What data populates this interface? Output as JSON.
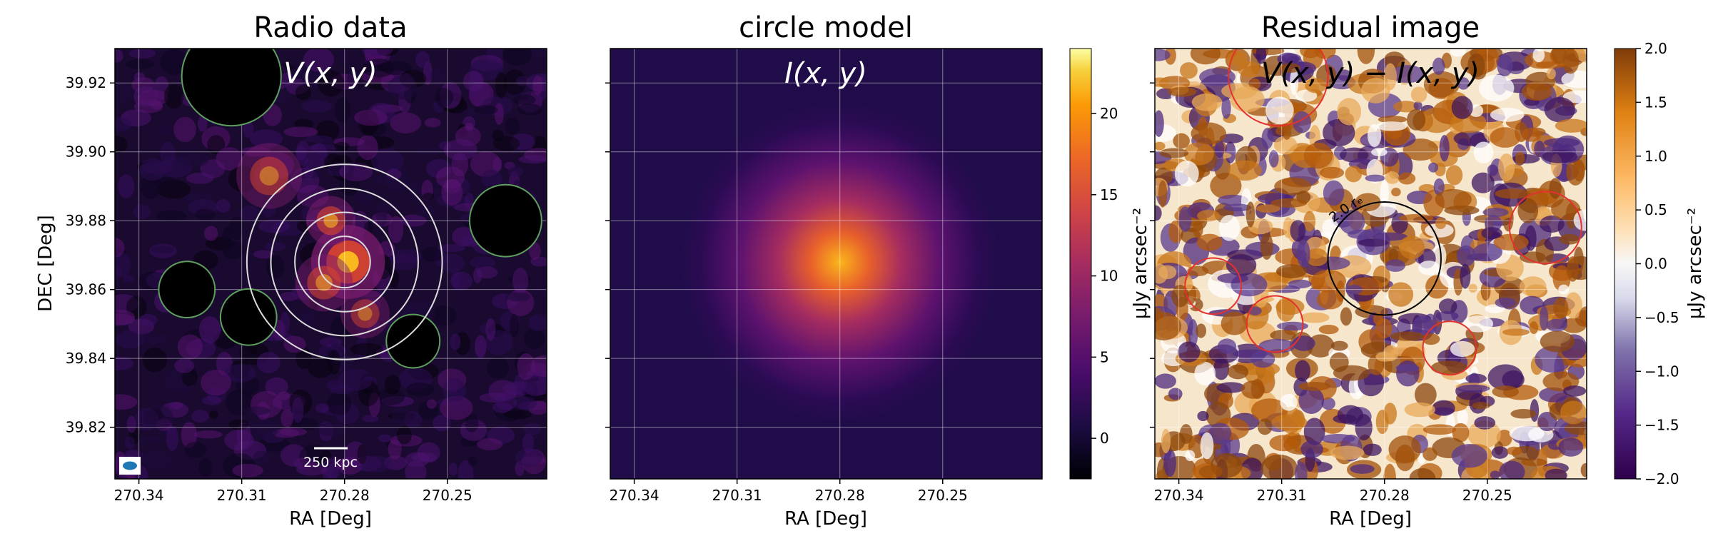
{
  "chart_data": [
    {
      "type": "heatmap",
      "title": "Radio data",
      "overlay_label": "V(x, y)",
      "xlabel": "RA [Deg]",
      "ylabel": "DEC [Deg]",
      "xlim": [
        270.347,
        270.221
      ],
      "ylim": [
        39.805,
        39.93
      ],
      "xticks": [
        270.34,
        270.31,
        270.28,
        270.25
      ],
      "xtick_labels": [
        "270.34",
        "270.31",
        "270.28",
        "270.25"
      ],
      "yticks": [
        39.82,
        39.84,
        39.86,
        39.88,
        39.9,
        39.92
      ],
      "ytick_labels": [
        "39.82",
        "39.84",
        "39.86",
        "39.88",
        "39.90",
        "39.92"
      ],
      "grid": true,
      "colormap": "inferno",
      "center": [
        270.28,
        39.868
      ],
      "concentric_circle_radii_deg": [
        0.0075,
        0.0145,
        0.0215,
        0.0285
      ],
      "masked_regions": [
        {
          "ra": 270.313,
          "dec": 39.922,
          "r": 0.0145
        },
        {
          "ra": 270.233,
          "dec": 39.88,
          "r": 0.0105
        },
        {
          "ra": 270.326,
          "dec": 39.86,
          "r": 0.0082
        },
        {
          "ra": 270.308,
          "dec": 39.852,
          "r": 0.0082
        },
        {
          "ra": 270.26,
          "dec": 39.845,
          "r": 0.0078
        }
      ],
      "bright_blobs": [
        {
          "ra": 270.279,
          "dec": 39.868,
          "amp": 1.0,
          "r": 0.0045
        },
        {
          "ra": 270.284,
          "dec": 39.88,
          "amp": 0.6,
          "r": 0.003
        },
        {
          "ra": 270.302,
          "dec": 39.893,
          "amp": 0.45,
          "r": 0.004
        },
        {
          "ra": 270.274,
          "dec": 39.853,
          "amp": 0.4,
          "r": 0.003
        },
        {
          "ra": 270.286,
          "dec": 39.862,
          "amp": 0.5,
          "r": 0.0035
        }
      ],
      "scalebar_label": "250 kpc",
      "beam_color": "#1f77b4"
    },
    {
      "type": "heatmap",
      "title": "circle model",
      "overlay_label": "I(x, y)",
      "xlabel": "RA [Deg]",
      "xlim": [
        270.347,
        270.221
      ],
      "ylim": [
        39.805,
        39.93
      ],
      "xticks": [
        270.34,
        270.31,
        270.28,
        270.25
      ],
      "xtick_labels": [
        "270.34",
        "270.31",
        "270.28",
        "270.25"
      ],
      "grid": true,
      "colormap": "inferno",
      "model_center": [
        270.28,
        39.868
      ],
      "model_peak": 18,
      "model_scale_deg": 0.0095,
      "colorbar": {
        "label": "μJy arcsec⁻²",
        "vmin": -2.5,
        "vmax": 24,
        "ticks": [
          0,
          5,
          10,
          15,
          20
        ],
        "tick_labels": [
          "0",
          "5",
          "10",
          "15",
          "20"
        ]
      }
    },
    {
      "type": "heatmap",
      "title": "Residual image",
      "overlay_label": "V(x, y) − I(x, y)",
      "xlabel": "RA [Deg]",
      "xlim": [
        270.347,
        270.221
      ],
      "ylim": [
        39.805,
        39.93
      ],
      "xticks": [
        270.34,
        270.31,
        270.28,
        270.25
      ],
      "xtick_labels": [
        "270.34",
        "270.31",
        "270.28",
        "270.25"
      ],
      "grid": true,
      "colormap": "PuOr_r",
      "annotation": "2.0 rₑ",
      "black_circle": {
        "ra": 270.28,
        "dec": 39.869,
        "r": 0.0165
      },
      "red_circles": [
        {
          "ra": 270.311,
          "dec": 39.922,
          "r": 0.0145
        },
        {
          "ra": 270.233,
          "dec": 39.878,
          "r": 0.0105
        },
        {
          "ra": 270.33,
          "dec": 39.861,
          "r": 0.0082
        },
        {
          "ra": 270.312,
          "dec": 39.85,
          "r": 0.0082
        },
        {
          "ra": 270.261,
          "dec": 39.843,
          "r": 0.0078
        }
      ],
      "colorbar": {
        "label": "μJy arcsec⁻²",
        "vmin": -2.0,
        "vmax": 2.0,
        "ticks": [
          2.0,
          1.5,
          1.0,
          0.5,
          0.0,
          -0.5,
          -1.0,
          -1.5,
          -2.0
        ],
        "tick_labels": [
          "2.0",
          "1.5",
          "1.0",
          "0.5",
          "0.0",
          "−0.5",
          "−1.0",
          "−1.5",
          "−2.0"
        ]
      }
    }
  ]
}
